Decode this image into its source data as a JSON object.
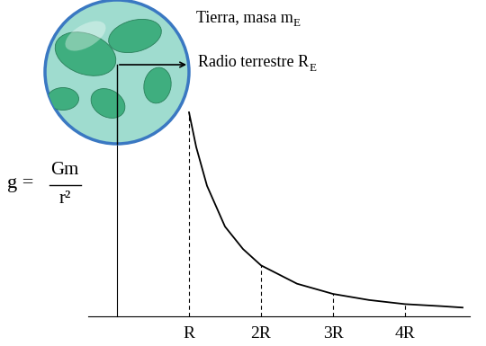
{
  "chart_data": {
    "type": "line",
    "x": [
      1,
      1.1,
      1.25,
      1.5,
      1.75,
      2,
      2.5,
      3,
      3.5,
      4,
      4.5,
      4.8
    ],
    "values": [
      1,
      0.83,
      0.64,
      0.44,
      0.33,
      0.25,
      0.16,
      0.11,
      0.08,
      0.06,
      0.05,
      0.043
    ],
    "color": "#000000",
    "xlim": [
      -0.4,
      4.9
    ],
    "ylim": [
      0,
      1.05
    ],
    "xticks": [
      {
        "value": 1,
        "label": "R"
      },
      {
        "value": 2,
        "label": "2R"
      },
      {
        "value": 3,
        "label": "3R"
      },
      {
        "value": 4,
        "label": "4R"
      }
    ],
    "yticks": [],
    "tick_labels": "x",
    "y_label": {
      "lhs": "g =",
      "numerator": "Gm",
      "denominator": "r²"
    },
    "annotations": [
      {
        "text": "Tierra, masa m",
        "subscript": "E"
      },
      {
        "text": "Radio terrestre R",
        "subscript": "E"
      }
    ]
  }
}
